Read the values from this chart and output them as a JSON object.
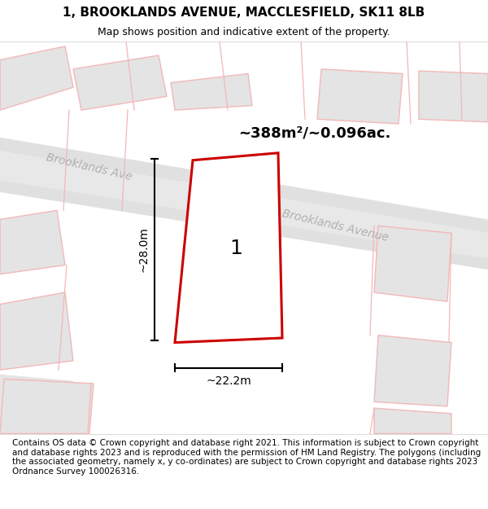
{
  "title": "1, BROOKLANDS AVENUE, MACCLESFIELD, SK11 8LB",
  "subtitle": "Map shows position and indicative extent of the property.",
  "footer": "Contains OS data © Crown copyright and database right 2021. This information is subject to Crown copyright and database rights 2023 and is reproduced with the permission of HM Land Registry. The polygons (including the associated geometry, namely x, y co-ordinates) are subject to Crown copyright and database rights 2023 Ordnance Survey 100026316.",
  "map_bg": "#f7f7f7",
  "road_fill": "#e8e8e8",
  "road_line_color": "#f2b8b8",
  "building_fill": "#e4e4e4",
  "building_edge": "#f2b8b8",
  "plot_fill": "#ffffff",
  "plot_edge": "#cc0000",
  "plot_number": "1",
  "area_text": "~388m²/~0.096ac.",
  "dim_width": "~22.2m",
  "dim_height": "~28.0m",
  "street_label1": "Brooklands Ave",
  "street_label2": "Brooklands Avenue",
  "title_fontsize": 11,
  "subtitle_fontsize": 9,
  "footer_fontsize": 7.5,
  "title_color": "#000000",
  "subtitle_color": "#000000",
  "street_color": "#b0b0b0",
  "street_fontsize": 10,
  "street_rotation": -13
}
